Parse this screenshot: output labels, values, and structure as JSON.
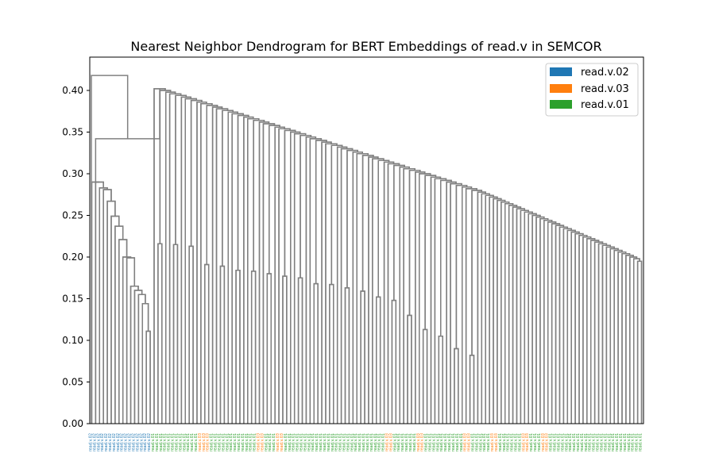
{
  "chart_data": {
    "type": "dendrogram",
    "title": "Nearest Neighbor Dendrogram for BERT Embeddings of read.v in SEMCOR",
    "xlabel": "",
    "ylabel": "",
    "ylim": [
      0,
      0.44
    ],
    "y_ticks": [
      0.0,
      0.05,
      0.1,
      0.15,
      0.2,
      0.25,
      0.3,
      0.35,
      0.4
    ],
    "grid": false,
    "legend_position": "top-right",
    "link_color": "#808080",
    "legend": [
      {
        "label": "read.v.02",
        "color": "#1f77b4"
      },
      {
        "label": "read.v.03",
        "color": "#ff7f0e"
      },
      {
        "label": "read.v.01",
        "color": "#2ca02c"
      }
    ],
    "sense_colors": {
      "read.v.02": "#1f77b4",
      "read.v.03": "#ff7f0e",
      "read.v.01": "#2ca02c"
    },
    "leaf_sense_runs": [
      [
        "read.v.02",
        16
      ],
      [
        "read.v.01",
        12
      ],
      [
        "read.v.03",
        3
      ],
      [
        "read.v.01",
        12
      ],
      [
        "read.v.03",
        2
      ],
      [
        "read.v.01",
        3
      ],
      [
        "read.v.03",
        2
      ],
      [
        "read.v.01",
        26
      ],
      [
        "read.v.03",
        2
      ],
      [
        "read.v.01",
        6
      ],
      [
        "read.v.03",
        2
      ],
      [
        "read.v.01",
        10
      ],
      [
        "read.v.03",
        2
      ],
      [
        "read.v.01",
        5
      ],
      [
        "read.v.03",
        2
      ],
      [
        "read.v.01",
        6
      ],
      [
        "read.v.03",
        2
      ],
      [
        "read.v.01",
        3
      ],
      [
        "read.v.03",
        2
      ],
      [
        "read.v.01",
        24
      ]
    ],
    "root_height": 0.418,
    "blue_cluster": {
      "merge_height": 0.342,
      "sub_heights": [
        0.29,
        0.283,
        0.281,
        0.267,
        0.249,
        0.237,
        0.221,
        0.2,
        0.199,
        0.165,
        0.16,
        0.155,
        0.144,
        0.111
      ]
    },
    "main_cluster_chain": [
      0.329,
      0.323,
      0.32,
      0.317,
      0.313,
      0.312,
      0.308,
      0.292,
      0.289,
      0.271,
      0.268,
      0.265,
      0.26,
      0.258,
      0.256,
      0.254,
      0.25,
      0.249,
      0.246,
      0.244,
      0.243,
      0.241,
      0.239,
      0.238,
      0.237,
      0.236,
      0.234,
      0.232,
      0.231,
      0.23,
      0.229,
      0.227,
      0.226,
      0.225,
      0.224,
      0.222,
      0.221,
      0.22,
      0.219,
      0.218,
      0.217,
      0.209,
      0.207,
      0.205,
      0.201,
      0.2,
      0.198,
      0.195
    ],
    "notable_low_merges": [
      0.216,
      0.215,
      0.213,
      0.191,
      0.189,
      0.184,
      0.183,
      0.18,
      0.177,
      0.175,
      0.168,
      0.167,
      0.163,
      0.159,
      0.152,
      0.148,
      0.13,
      0.113,
      0.105,
      0.09,
      0.082
    ]
  }
}
